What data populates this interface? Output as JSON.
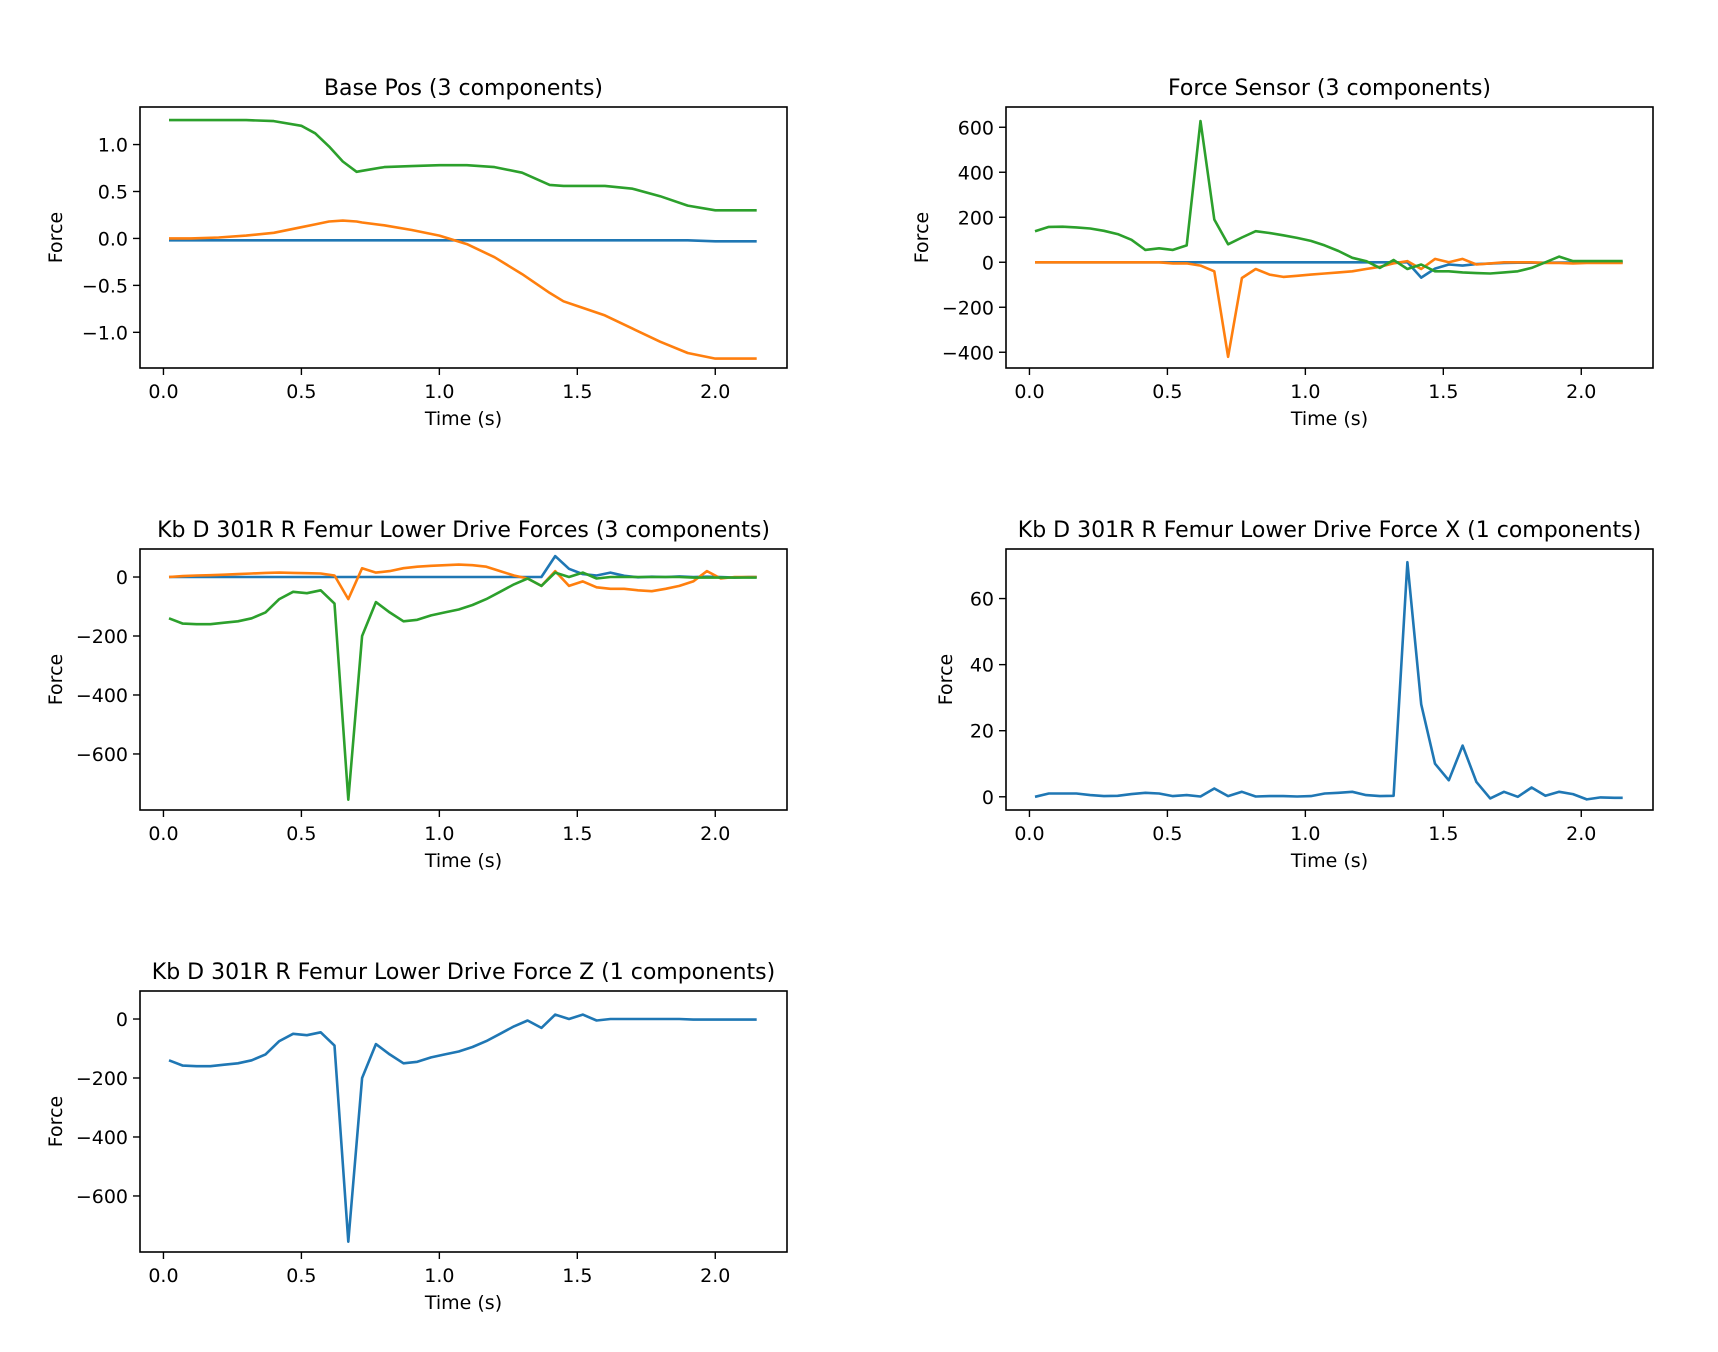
{
  "colors": {
    "C0": "#1f77b4",
    "C1": "#ff7f0e",
    "C2": "#2ca02c"
  },
  "chart_data": [
    {
      "type": "line",
      "title": "Base Pos (3 components)",
      "xlabel": "Time (s)",
      "ylabel": "Force",
      "xlim": [
        -0.085,
        2.26
      ],
      "ylim": [
        -1.38,
        1.4
      ],
      "xticks": [
        "0.0",
        "0.5",
        "1.0",
        "1.5",
        "2.0"
      ],
      "xtick_values": [
        0,
        0.5,
        1.0,
        1.5,
        2.0
      ],
      "yticks": [
        "1.0",
        "0.5",
        "0.0",
        "−0.5",
        "−1.0"
      ],
      "ytick_values": [
        1.0,
        0.5,
        0.0,
        -0.5,
        -1.0
      ],
      "x": [
        0.02,
        0.1,
        0.2,
        0.3,
        0.4,
        0.5,
        0.55,
        0.6,
        0.65,
        0.7,
        0.72,
        0.8,
        0.9,
        1.0,
        1.1,
        1.2,
        1.3,
        1.4,
        1.45,
        1.5,
        1.6,
        1.7,
        1.8,
        1.9,
        2.0,
        2.1,
        2.15
      ],
      "series": [
        {
          "color_key": "C0",
          "values": [
            -0.02,
            -0.02,
            -0.02,
            -0.02,
            -0.02,
            -0.02,
            -0.02,
            -0.02,
            -0.02,
            -0.02,
            -0.02,
            -0.02,
            -0.02,
            -0.02,
            -0.02,
            -0.02,
            -0.02,
            -0.02,
            -0.02,
            -0.02,
            -0.02,
            -0.02,
            -0.02,
            -0.02,
            -0.03,
            -0.03,
            -0.03
          ]
        },
        {
          "color_key": "C1",
          "values": [
            0.0,
            0.0,
            0.01,
            0.03,
            0.06,
            0.12,
            0.15,
            0.18,
            0.19,
            0.18,
            0.17,
            0.14,
            0.09,
            0.03,
            -0.06,
            -0.2,
            -0.38,
            -0.58,
            -0.67,
            -0.72,
            -0.82,
            -0.96,
            -1.1,
            -1.22,
            -1.28,
            -1.28,
            -1.28
          ]
        },
        {
          "color_key": "C2",
          "values": [
            1.26,
            1.26,
            1.26,
            1.26,
            1.25,
            1.2,
            1.12,
            0.98,
            0.82,
            0.71,
            0.72,
            0.76,
            0.77,
            0.78,
            0.78,
            0.76,
            0.7,
            0.57,
            0.56,
            0.56,
            0.56,
            0.53,
            0.45,
            0.35,
            0.3,
            0.3,
            0.3
          ]
        }
      ]
    },
    {
      "type": "line",
      "title": "Force Sensor (3 components)",
      "xlabel": "Time (s)",
      "ylabel": "Force",
      "xlim": [
        -0.085,
        2.26
      ],
      "ylim": [
        -470,
        690
      ],
      "xticks": [
        "0.0",
        "0.5",
        "1.0",
        "1.5",
        "2.0"
      ],
      "xtick_values": [
        0,
        0.5,
        1.0,
        1.5,
        2.0
      ],
      "yticks": [
        "600",
        "400",
        "200",
        "0",
        "−200",
        "−400"
      ],
      "ytick_values": [
        600,
        400,
        200,
        0,
        -200,
        -400
      ],
      "x": [
        0.02,
        0.07,
        0.12,
        0.17,
        0.22,
        0.27,
        0.32,
        0.37,
        0.42,
        0.47,
        0.52,
        0.57,
        0.62,
        0.67,
        0.72,
        0.77,
        0.82,
        0.87,
        0.92,
        0.97,
        1.02,
        1.07,
        1.12,
        1.17,
        1.22,
        1.27,
        1.32,
        1.37,
        1.42,
        1.47,
        1.52,
        1.57,
        1.62,
        1.67,
        1.72,
        1.77,
        1.82,
        1.87,
        1.92,
        1.97,
        2.02,
        2.07,
        2.12,
        2.15
      ],
      "series": [
        {
          "color_key": "C0",
          "values": [
            0,
            0,
            0,
            0,
            0,
            0,
            0,
            0,
            0,
            0,
            0,
            0,
            0,
            0,
            0,
            0,
            0,
            0,
            0,
            0,
            0,
            0,
            0,
            0,
            0,
            0,
            0,
            0,
            -68,
            -28,
            -10,
            -15,
            -8,
            -6,
            -3,
            -2,
            -2,
            -2,
            -1,
            -1,
            -2,
            -1,
            0,
            0
          ]
        },
        {
          "color_key": "C1",
          "values": [
            0,
            0,
            0,
            0,
            0,
            0,
            0,
            0,
            0,
            0,
            -5,
            -5,
            -15,
            -40,
            -420,
            -70,
            -30,
            -55,
            -65,
            -60,
            -55,
            -50,
            -45,
            -40,
            -30,
            -20,
            -5,
            5,
            -30,
            15,
            0,
            15,
            -10,
            -5,
            0,
            0,
            0,
            -3,
            -3,
            -5,
            -3,
            -3,
            -3,
            -3
          ]
        },
        {
          "color_key": "C2",
          "values": [
            138,
            157,
            158,
            155,
            150,
            140,
            125,
            100,
            55,
            62,
            55,
            75,
            628,
            190,
            80,
            110,
            138,
            130,
            120,
            108,
            95,
            75,
            50,
            20,
            5,
            -25,
            10,
            -30,
            -10,
            -40,
            -40,
            -45,
            -48,
            -50,
            -45,
            -40,
            -25,
            0,
            25,
            5,
            5,
            5,
            5,
            5
          ]
        }
      ]
    },
    {
      "type": "line",
      "title": "Kb D 301R R Femur Lower Drive Forces (3 components)",
      "xlabel": "Time (s)",
      "ylabel": "Force",
      "xlim": [
        -0.085,
        2.26
      ],
      "ylim": [
        -790,
        95
      ],
      "xticks": [
        "0.0",
        "0.5",
        "1.0",
        "1.5",
        "2.0"
      ],
      "xtick_values": [
        0,
        0.5,
        1.0,
        1.5,
        2.0
      ],
      "yticks": [
        "0",
        "−200",
        "−400",
        "−600"
      ],
      "ytick_values": [
        0,
        -200,
        -400,
        -600
      ],
      "x": [
        0.02,
        0.07,
        0.12,
        0.17,
        0.22,
        0.27,
        0.32,
        0.37,
        0.42,
        0.47,
        0.52,
        0.57,
        0.62,
        0.67,
        0.72,
        0.77,
        0.82,
        0.87,
        0.92,
        0.97,
        1.02,
        1.07,
        1.12,
        1.17,
        1.22,
        1.27,
        1.32,
        1.37,
        1.42,
        1.47,
        1.52,
        1.57,
        1.62,
        1.67,
        1.72,
        1.77,
        1.82,
        1.87,
        1.92,
        1.97,
        2.02,
        2.07,
        2.12,
        2.15
      ],
      "series": [
        {
          "color_key": "C0",
          "values": [
            0,
            0,
            0,
            0,
            0,
            0,
            0,
            0,
            0,
            0,
            0,
            0,
            0,
            0,
            0,
            0,
            0,
            0,
            0,
            0,
            0,
            0,
            0,
            0,
            0,
            0,
            0,
            0,
            71,
            28,
            10,
            5,
            15,
            4,
            -1,
            1,
            0,
            2,
            0,
            1,
            0,
            -2,
            0,
            0
          ]
        },
        {
          "color_key": "C1",
          "values": [
            0,
            3,
            5,
            6,
            8,
            10,
            12,
            14,
            15,
            14,
            13,
            12,
            5,
            -75,
            30,
            15,
            20,
            30,
            35,
            38,
            40,
            42,
            40,
            35,
            20,
            5,
            -5,
            -30,
            20,
            -30,
            -15,
            -35,
            -40,
            -40,
            -45,
            -48,
            -40,
            -30,
            -15,
            20,
            -5,
            0,
            0,
            0
          ]
        },
        {
          "color_key": "C2",
          "values": [
            -140,
            -158,
            -160,
            -160,
            -155,
            -150,
            -140,
            -120,
            -75,
            -50,
            -55,
            -45,
            -90,
            -755,
            -200,
            -85,
            -120,
            -150,
            -145,
            -130,
            -120,
            -110,
            -95,
            -75,
            -50,
            -25,
            -5,
            -30,
            15,
            0,
            15,
            -5,
            0,
            0,
            0,
            0,
            0,
            0,
            -2,
            -2,
            -2,
            -2,
            -2,
            -2
          ]
        }
      ]
    },
    {
      "type": "line",
      "title": "Kb D 301R R Femur Lower Drive Force X (1 components)",
      "xlabel": "Time (s)",
      "ylabel": "Force",
      "xlim": [
        -0.085,
        2.26
      ],
      "ylim": [
        -4,
        75
      ],
      "xticks": [
        "0.0",
        "0.5",
        "1.0",
        "1.5",
        "2.0"
      ],
      "xtick_values": [
        0,
        0.5,
        1.0,
        1.5,
        2.0
      ],
      "yticks": [
        "60",
        "40",
        "20",
        "0"
      ],
      "ytick_values": [
        60,
        40,
        20,
        0
      ],
      "x": [
        0.02,
        0.07,
        0.12,
        0.17,
        0.22,
        0.27,
        0.32,
        0.37,
        0.42,
        0.47,
        0.52,
        0.57,
        0.62,
        0.67,
        0.72,
        0.77,
        0.82,
        0.87,
        0.92,
        0.97,
        1.02,
        1.07,
        1.12,
        1.17,
        1.22,
        1.27,
        1.32,
        1.37,
        1.42,
        1.47,
        1.52,
        1.57,
        1.62,
        1.67,
        1.72,
        1.77,
        1.82,
        1.87,
        1.92,
        1.97,
        2.02,
        2.07,
        2.12,
        2.15
      ],
      "series": [
        {
          "color_key": "C0",
          "values": [
            0,
            1,
            1,
            1,
            0.5,
            0.2,
            0.3,
            0.8,
            1.2,
            1,
            0.2,
            0.5,
            0.1,
            2.5,
            0.2,
            1.5,
            0.1,
            0.2,
            0.2,
            0.1,
            0.2,
            1,
            1.2,
            1.5,
            0.5,
            0.2,
            0.3,
            71,
            28,
            10,
            5,
            15.5,
            4.5,
            -0.5,
            1.5,
            0,
            2.8,
            0.3,
            1.5,
            0.8,
            -0.8,
            -0.2,
            -0.3,
            -0.3
          ]
        }
      ]
    },
    {
      "type": "line",
      "title": "Kb D 301R R Femur Lower Drive Force Z (1 components)",
      "xlabel": "Time (s)",
      "ylabel": "Force",
      "xlim": [
        -0.085,
        2.26
      ],
      "ylim": [
        -790,
        95
      ],
      "xticks": [
        "0.0",
        "0.5",
        "1.0",
        "1.5",
        "2.0"
      ],
      "xtick_values": [
        0,
        0.5,
        1.0,
        1.5,
        2.0
      ],
      "yticks": [
        "0",
        "−200",
        "−400",
        "−600"
      ],
      "ytick_values": [
        0,
        -200,
        -400,
        -600
      ],
      "x": [
        0.02,
        0.07,
        0.12,
        0.17,
        0.22,
        0.27,
        0.32,
        0.37,
        0.42,
        0.47,
        0.52,
        0.57,
        0.62,
        0.67,
        0.72,
        0.77,
        0.82,
        0.87,
        0.92,
        0.97,
        1.02,
        1.07,
        1.12,
        1.17,
        1.22,
        1.27,
        1.32,
        1.37,
        1.42,
        1.47,
        1.52,
        1.57,
        1.62,
        1.67,
        1.72,
        1.77,
        1.82,
        1.87,
        1.92,
        1.97,
        2.02,
        2.07,
        2.12,
        2.15
      ],
      "series": [
        {
          "color_key": "C0",
          "values": [
            -140,
            -158,
            -160,
            -160,
            -155,
            -150,
            -140,
            -120,
            -75,
            -50,
            -55,
            -45,
            -90,
            -755,
            -200,
            -85,
            -120,
            -150,
            -145,
            -130,
            -120,
            -110,
            -95,
            -75,
            -50,
            -25,
            -5,
            -30,
            15,
            0,
            15,
            -5,
            0,
            0,
            0,
            0,
            0,
            0,
            -2,
            -2,
            -2,
            -2,
            -2,
            -2
          ]
        }
      ]
    }
  ]
}
